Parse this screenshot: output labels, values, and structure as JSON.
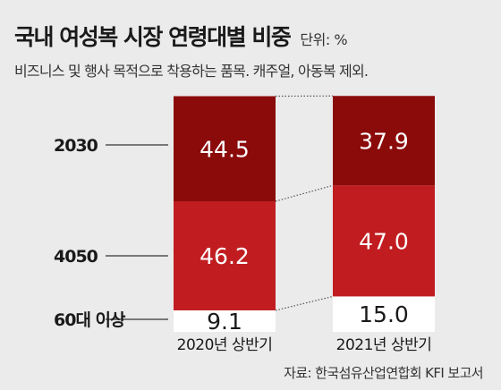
{
  "header": {
    "title": "국내 여성복 시장 연령대별 비중",
    "unit": "단위: %",
    "subtitle": "비즈니스 및 행사 목적으로 착용하는 품목. 캐주얼, 아동복 제외."
  },
  "source": "자료: 한국섬유산업연합회 KFI 보고서",
  "colors": {
    "seg_2030": "#8b0a0a",
    "seg_4050": "#c11d21",
    "seg_60": "#ffffff",
    "text_light": "#ffffff",
    "text_dark": "#1a1a1a"
  },
  "chart_data": {
    "type": "bar",
    "stacked": true,
    "categories": [
      "2020년 상반기",
      "2021년 상반기"
    ],
    "series": [
      {
        "name": "60대 이상",
        "values": [
          9.1,
          15.0
        ],
        "labels": [
          "9.1",
          "15.0"
        ]
      },
      {
        "name": "4050",
        "values": [
          46.2,
          47.0
        ],
        "labels": [
          "46.2",
          "47.0"
        ]
      },
      {
        "name": "2030",
        "values": [
          44.5,
          37.9
        ],
        "labels": [
          "44.5",
          "37.9"
        ]
      }
    ],
    "legend_placement": "left",
    "ylim": [
      0,
      100
    ]
  }
}
